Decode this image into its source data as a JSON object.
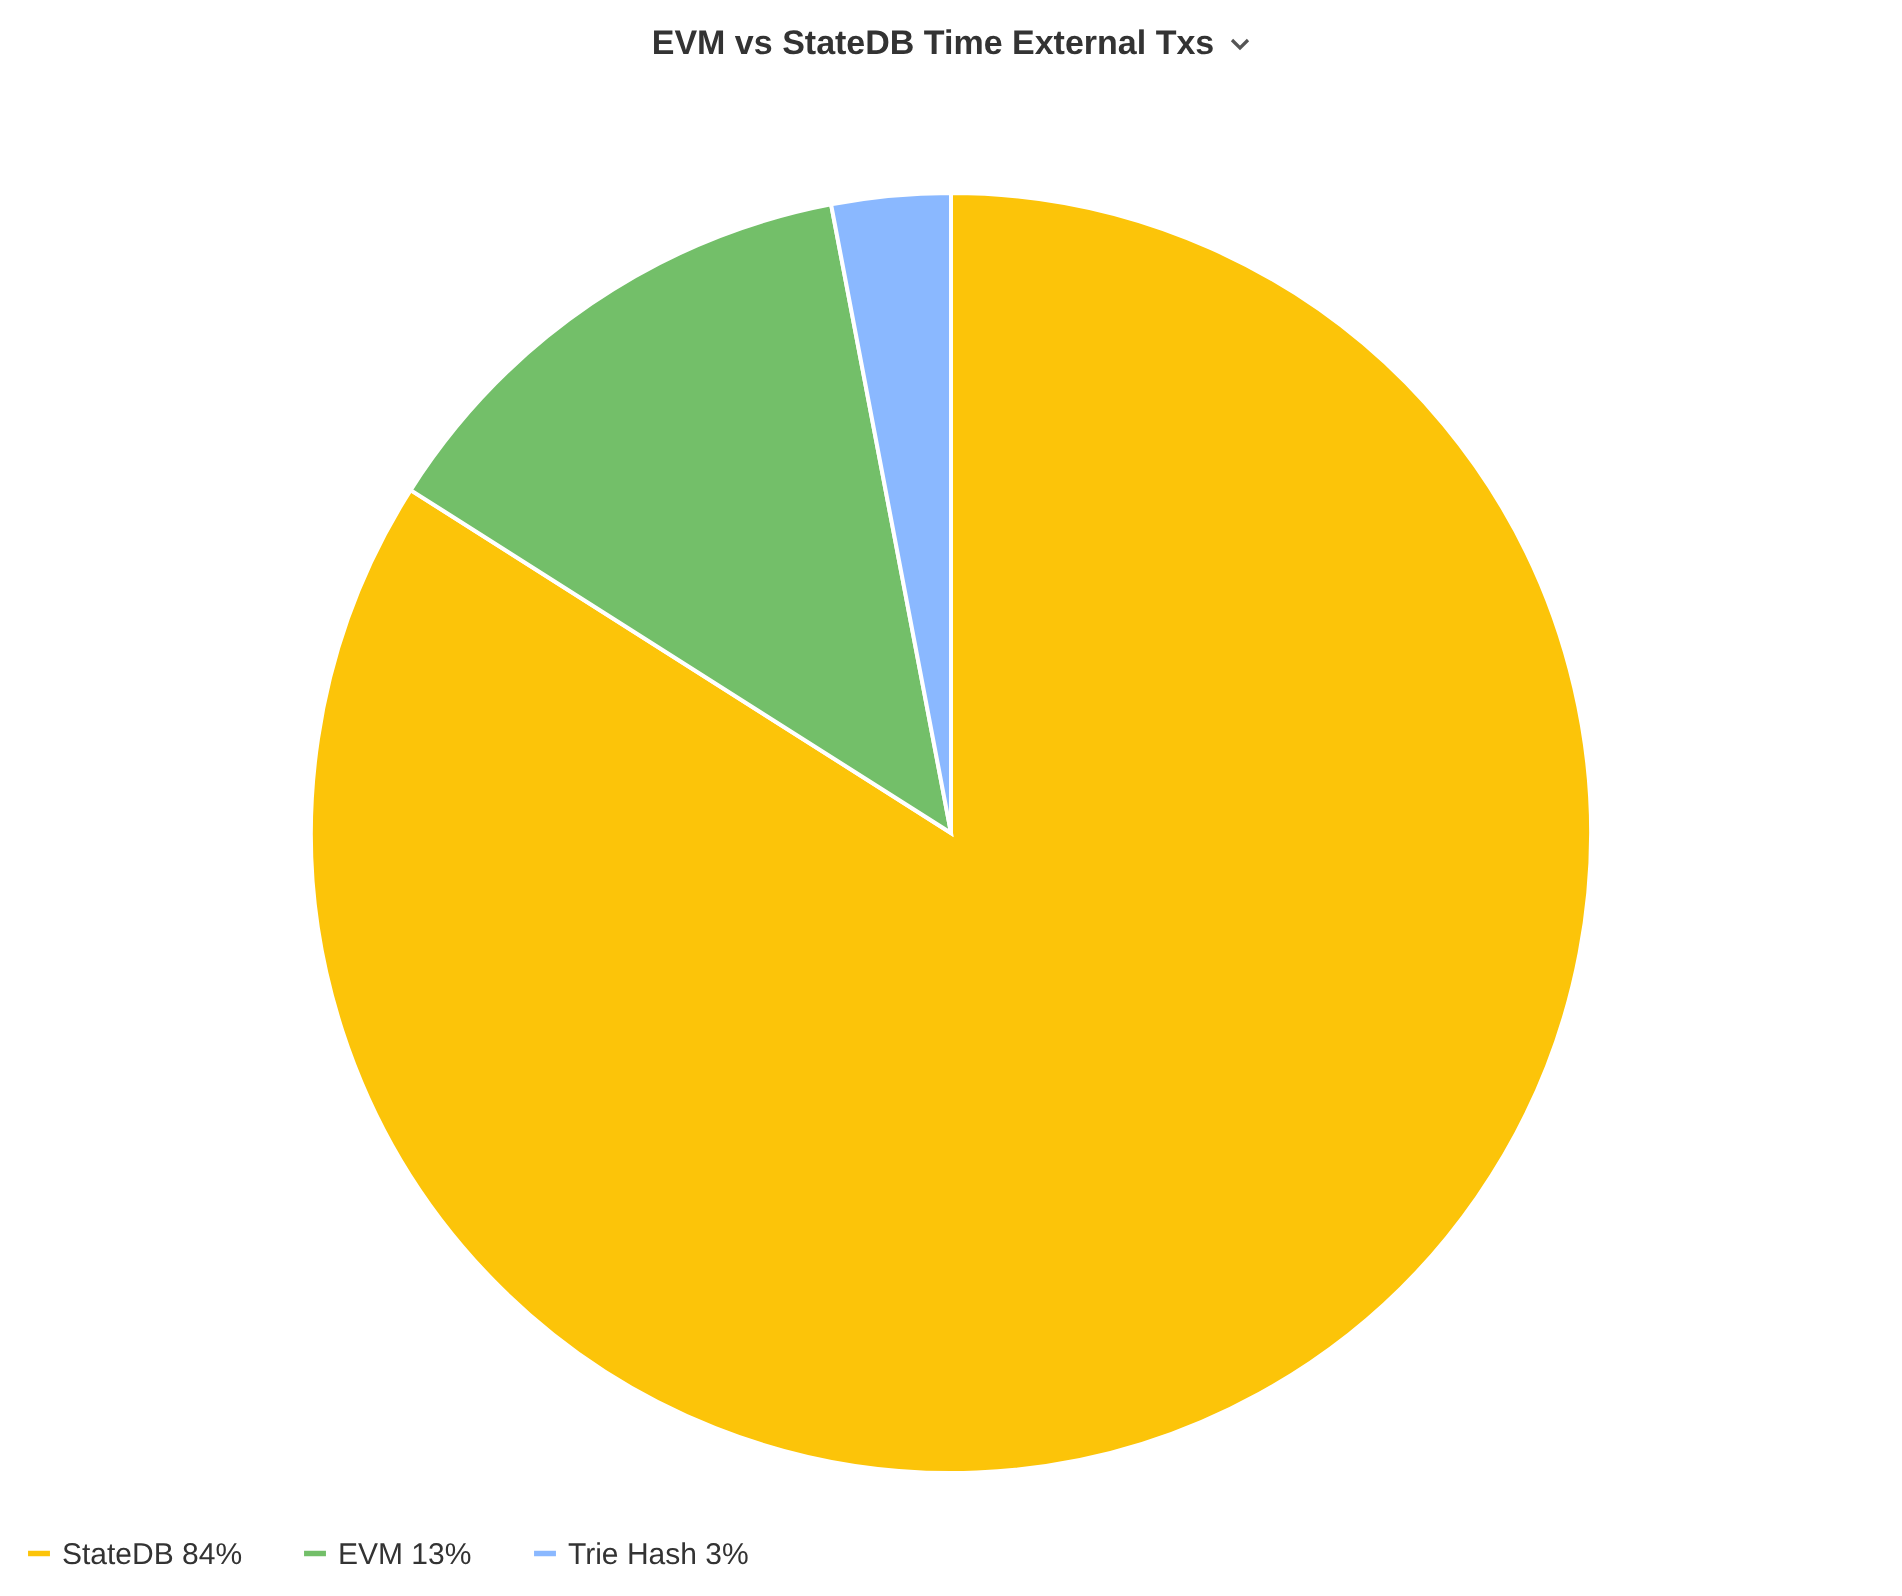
{
  "chart_data": {
    "type": "pie",
    "title": "EVM vs StateDB Time External Txs",
    "categories": [
      "StateDB",
      "EVM",
      "Trie Hash"
    ],
    "values": [
      84,
      13,
      3
    ],
    "value_labels": [
      "84%",
      "13%",
      "3%"
    ],
    "colors": [
      "#fcc409",
      "#73bf69",
      "#8ab8ff"
    ],
    "legend": "bottom left"
  }
}
